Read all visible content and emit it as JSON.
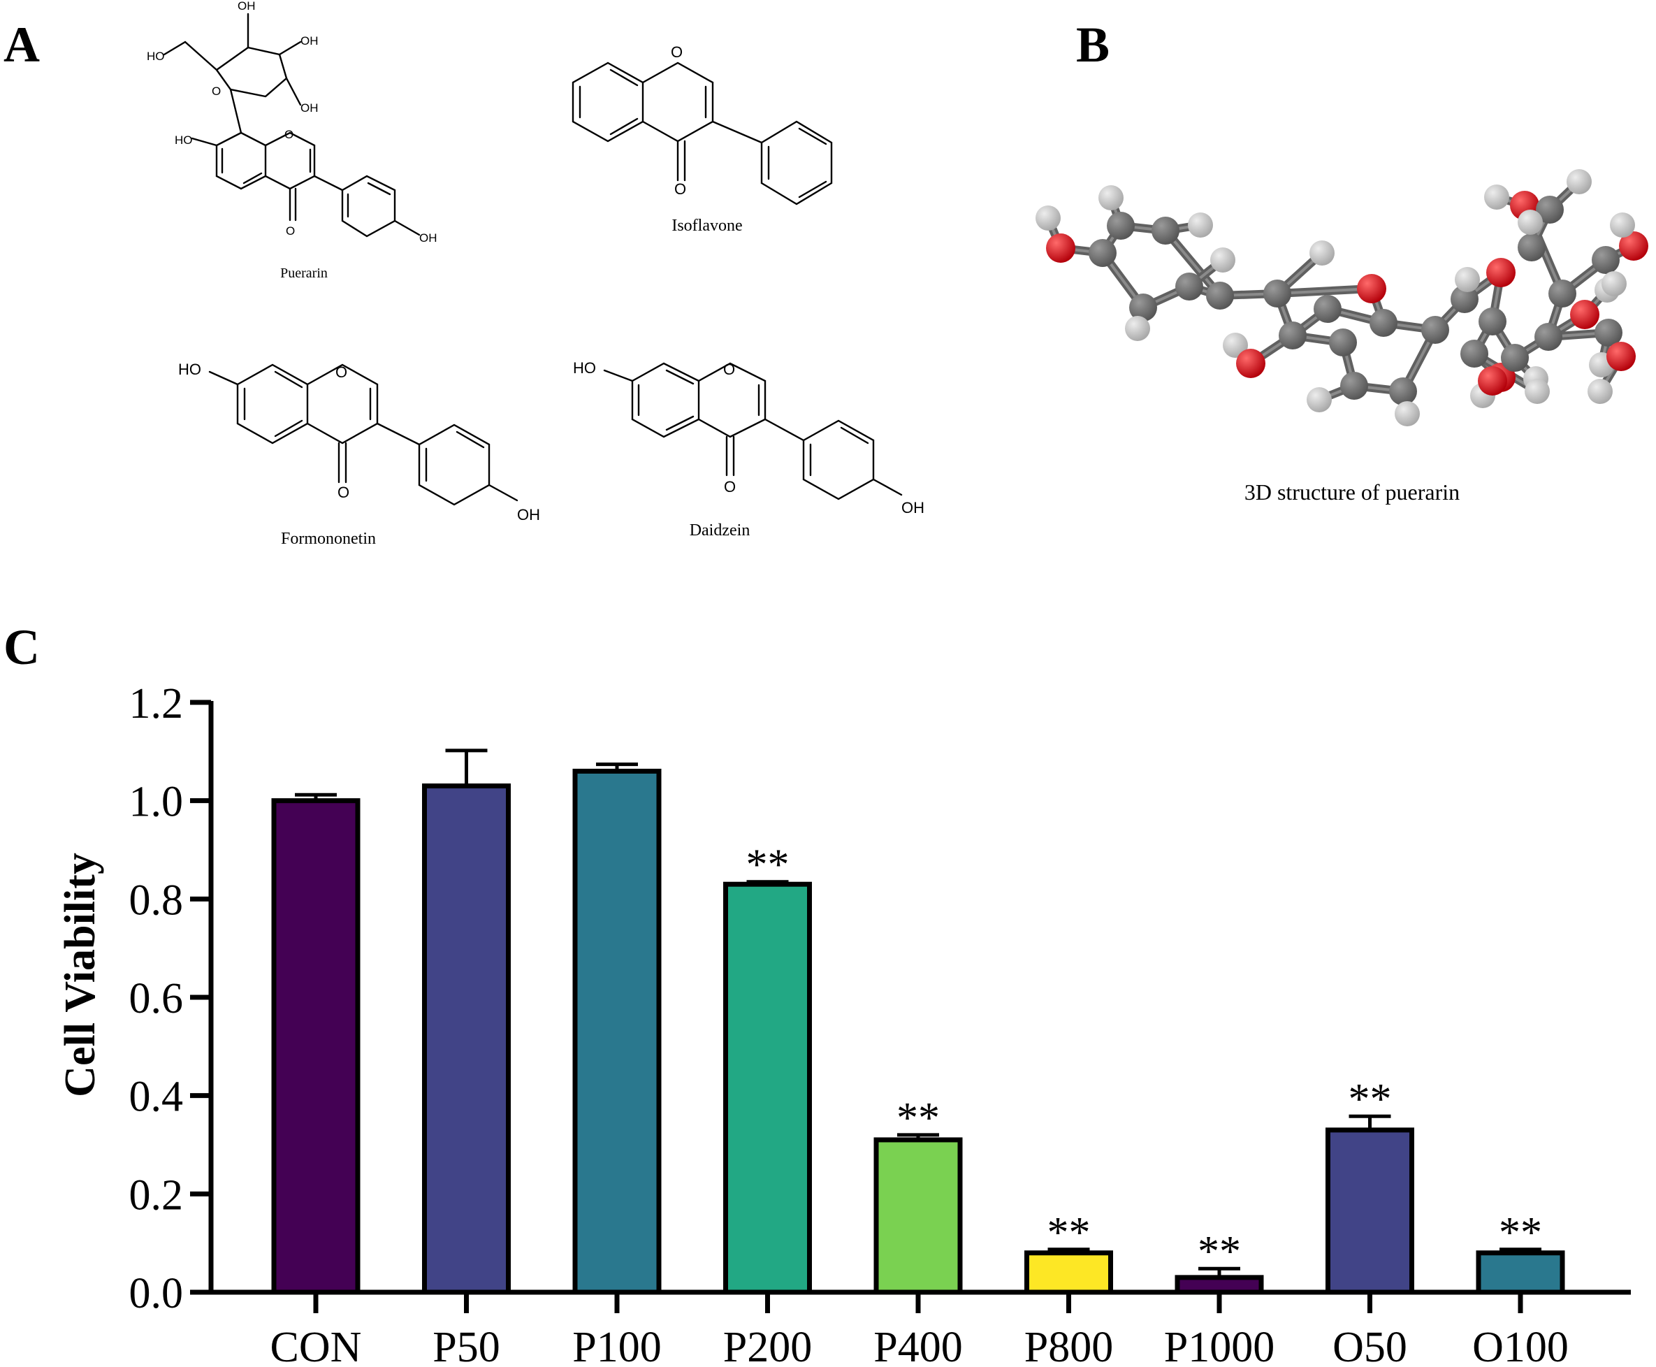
{
  "panels": {
    "a": "A",
    "b": "B",
    "c": "C"
  },
  "molecules": {
    "puerarin": "Puerarin",
    "isoflavone": "Isoflavone",
    "formononetin": "Formononetin",
    "daidzein": "Daidzein",
    "structure_3d": "3D structure of puerarin"
  },
  "atom_labels": {
    "oh": "OH",
    "ho": "HO",
    "o": "O"
  },
  "colors": {
    "oxygen_atom": "#b3000a",
    "carbon_atom": "#555555",
    "hydrogen_atom": "#a8a8a8",
    "bond": "#606060"
  },
  "chart_data": {
    "type": "bar",
    "title": "",
    "xlabel": "",
    "ylabel": "Cell Viability",
    "ylim": [
      0,
      1.2
    ],
    "yticks": [
      "0.0",
      "0.2",
      "0.4",
      "0.6",
      "0.8",
      "1.0",
      "1.2"
    ],
    "categories": [
      "CON",
      "P50",
      "P100",
      "P200",
      "P400",
      "P800",
      "P1000",
      "O50",
      "O100"
    ],
    "values": [
      1.0,
      1.03,
      1.06,
      0.83,
      0.31,
      0.08,
      0.03,
      0.33,
      0.08
    ],
    "errors": [
      0.012,
      0.072,
      0.014,
      0.005,
      0.01,
      0.007,
      0.018,
      0.028,
      0.007
    ],
    "significance": [
      "",
      "",
      "",
      "**",
      "**",
      "**",
      "**",
      "**",
      "**"
    ],
    "colors": [
      "#440154",
      "#414487",
      "#2a788e",
      "#22a884",
      "#7ad151",
      "#fde725",
      "#440154",
      "#414487",
      "#2a788e"
    ],
    "grid": false,
    "legend": "none"
  }
}
